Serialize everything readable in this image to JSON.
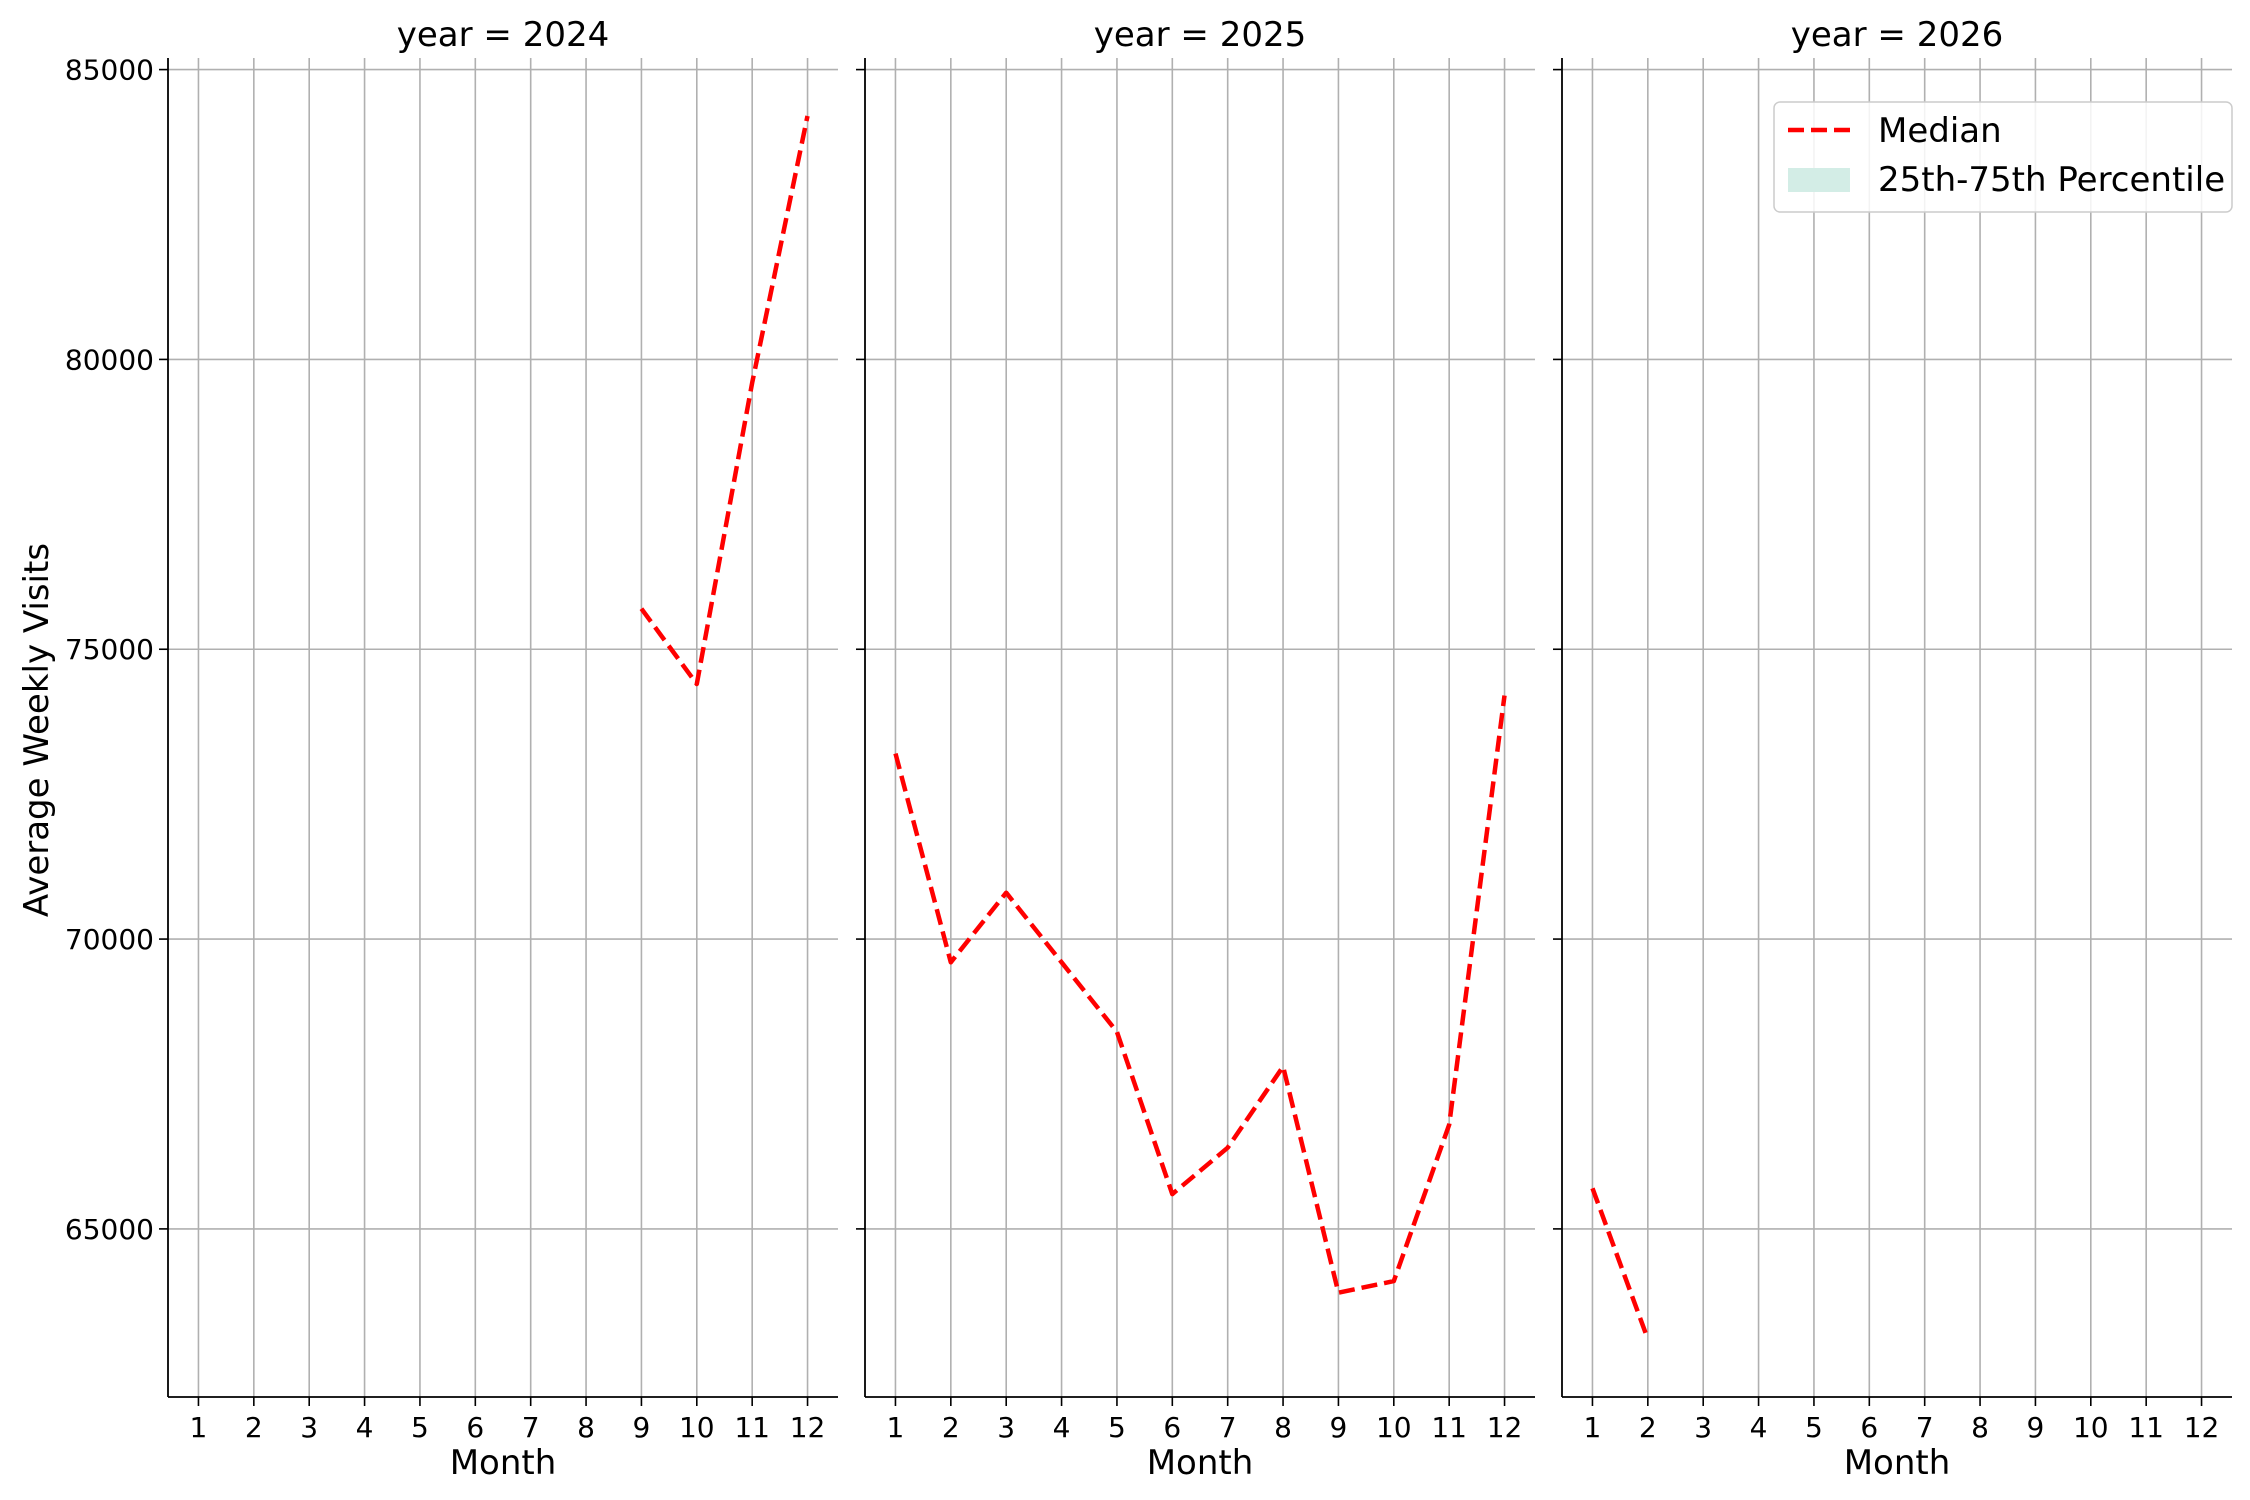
{
  "chart_data": {
    "type": "line",
    "ylabel": "Average Weekly Visits",
    "xlabel": "Month",
    "x_ticks": [
      1,
      2,
      3,
      4,
      5,
      6,
      7,
      8,
      9,
      10,
      11,
      12
    ],
    "xlim": [
      0.45,
      12.55
    ],
    "ylim": [
      62100,
      85200
    ],
    "y_ticks": [
      65000,
      70000,
      75000,
      80000,
      85000
    ],
    "grid": true,
    "legend_placement": "top-right",
    "legend": [
      {
        "name": "Median",
        "style": "dashed-line",
        "color": "#ff0000"
      },
      {
        "name": "25th-75th Percentile",
        "style": "band",
        "color": "#d3ede6"
      }
    ],
    "panels": [
      {
        "title": "year = 2024",
        "series": [
          {
            "name": "Median",
            "x": [
              9,
              10,
              11,
              12
            ],
            "values": [
              75700,
              74400,
              79600,
              84200
            ]
          }
        ]
      },
      {
        "title": "year = 2025",
        "series": [
          {
            "name": "Median",
            "x": [
              1,
              2,
              3,
              4,
              5,
              6,
              7,
              8,
              9,
              10,
              11,
              12
            ],
            "values": [
              73200,
              69600,
              70800,
              69600,
              68400,
              65600,
              66400,
              67800,
              63900,
              64100,
              66800,
              74200
            ]
          }
        ]
      },
      {
        "title": "year = 2026",
        "series": [
          {
            "name": "Median",
            "x": [
              1,
              2
            ],
            "values": [
              65700,
              63100
            ]
          }
        ]
      }
    ]
  }
}
